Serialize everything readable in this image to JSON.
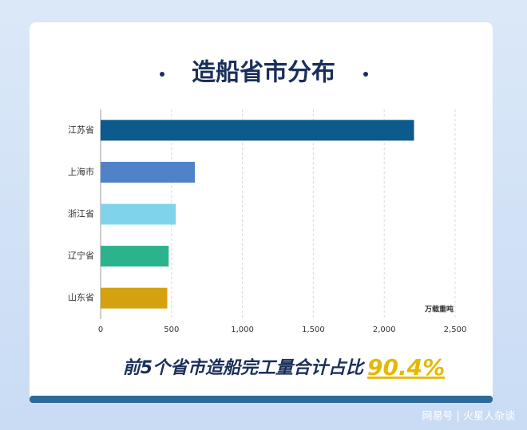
{
  "chart_data": {
    "type": "bar",
    "orientation": "horizontal",
    "title": "造船省市分布",
    "categories": [
      "江苏省",
      "上海市",
      "浙江省",
      "辽宁省",
      "山东省"
    ],
    "values": [
      2210,
      665,
      530,
      480,
      470
    ],
    "colors": [
      "#0d5a8c",
      "#4f82c9",
      "#7fd4ec",
      "#2bb38e",
      "#d4a20e"
    ],
    "xlim": [
      0,
      2500
    ],
    "xticks": [
      0,
      500,
      {
        "value": 1000,
        "label": "1,000"
      },
      {
        "value": 1500,
        "label": "1,500"
      },
      {
        "value": 2000,
        "label": "2,000"
      },
      {
        "value": 2500,
        "label": "2,500"
      }
    ],
    "xlabel": "万载重吨",
    "grid": true,
    "summary": "前5个省市造船完工量合计占比",
    "highlight": "90.4%",
    "source": "网易号 | 火星人杂谈"
  }
}
